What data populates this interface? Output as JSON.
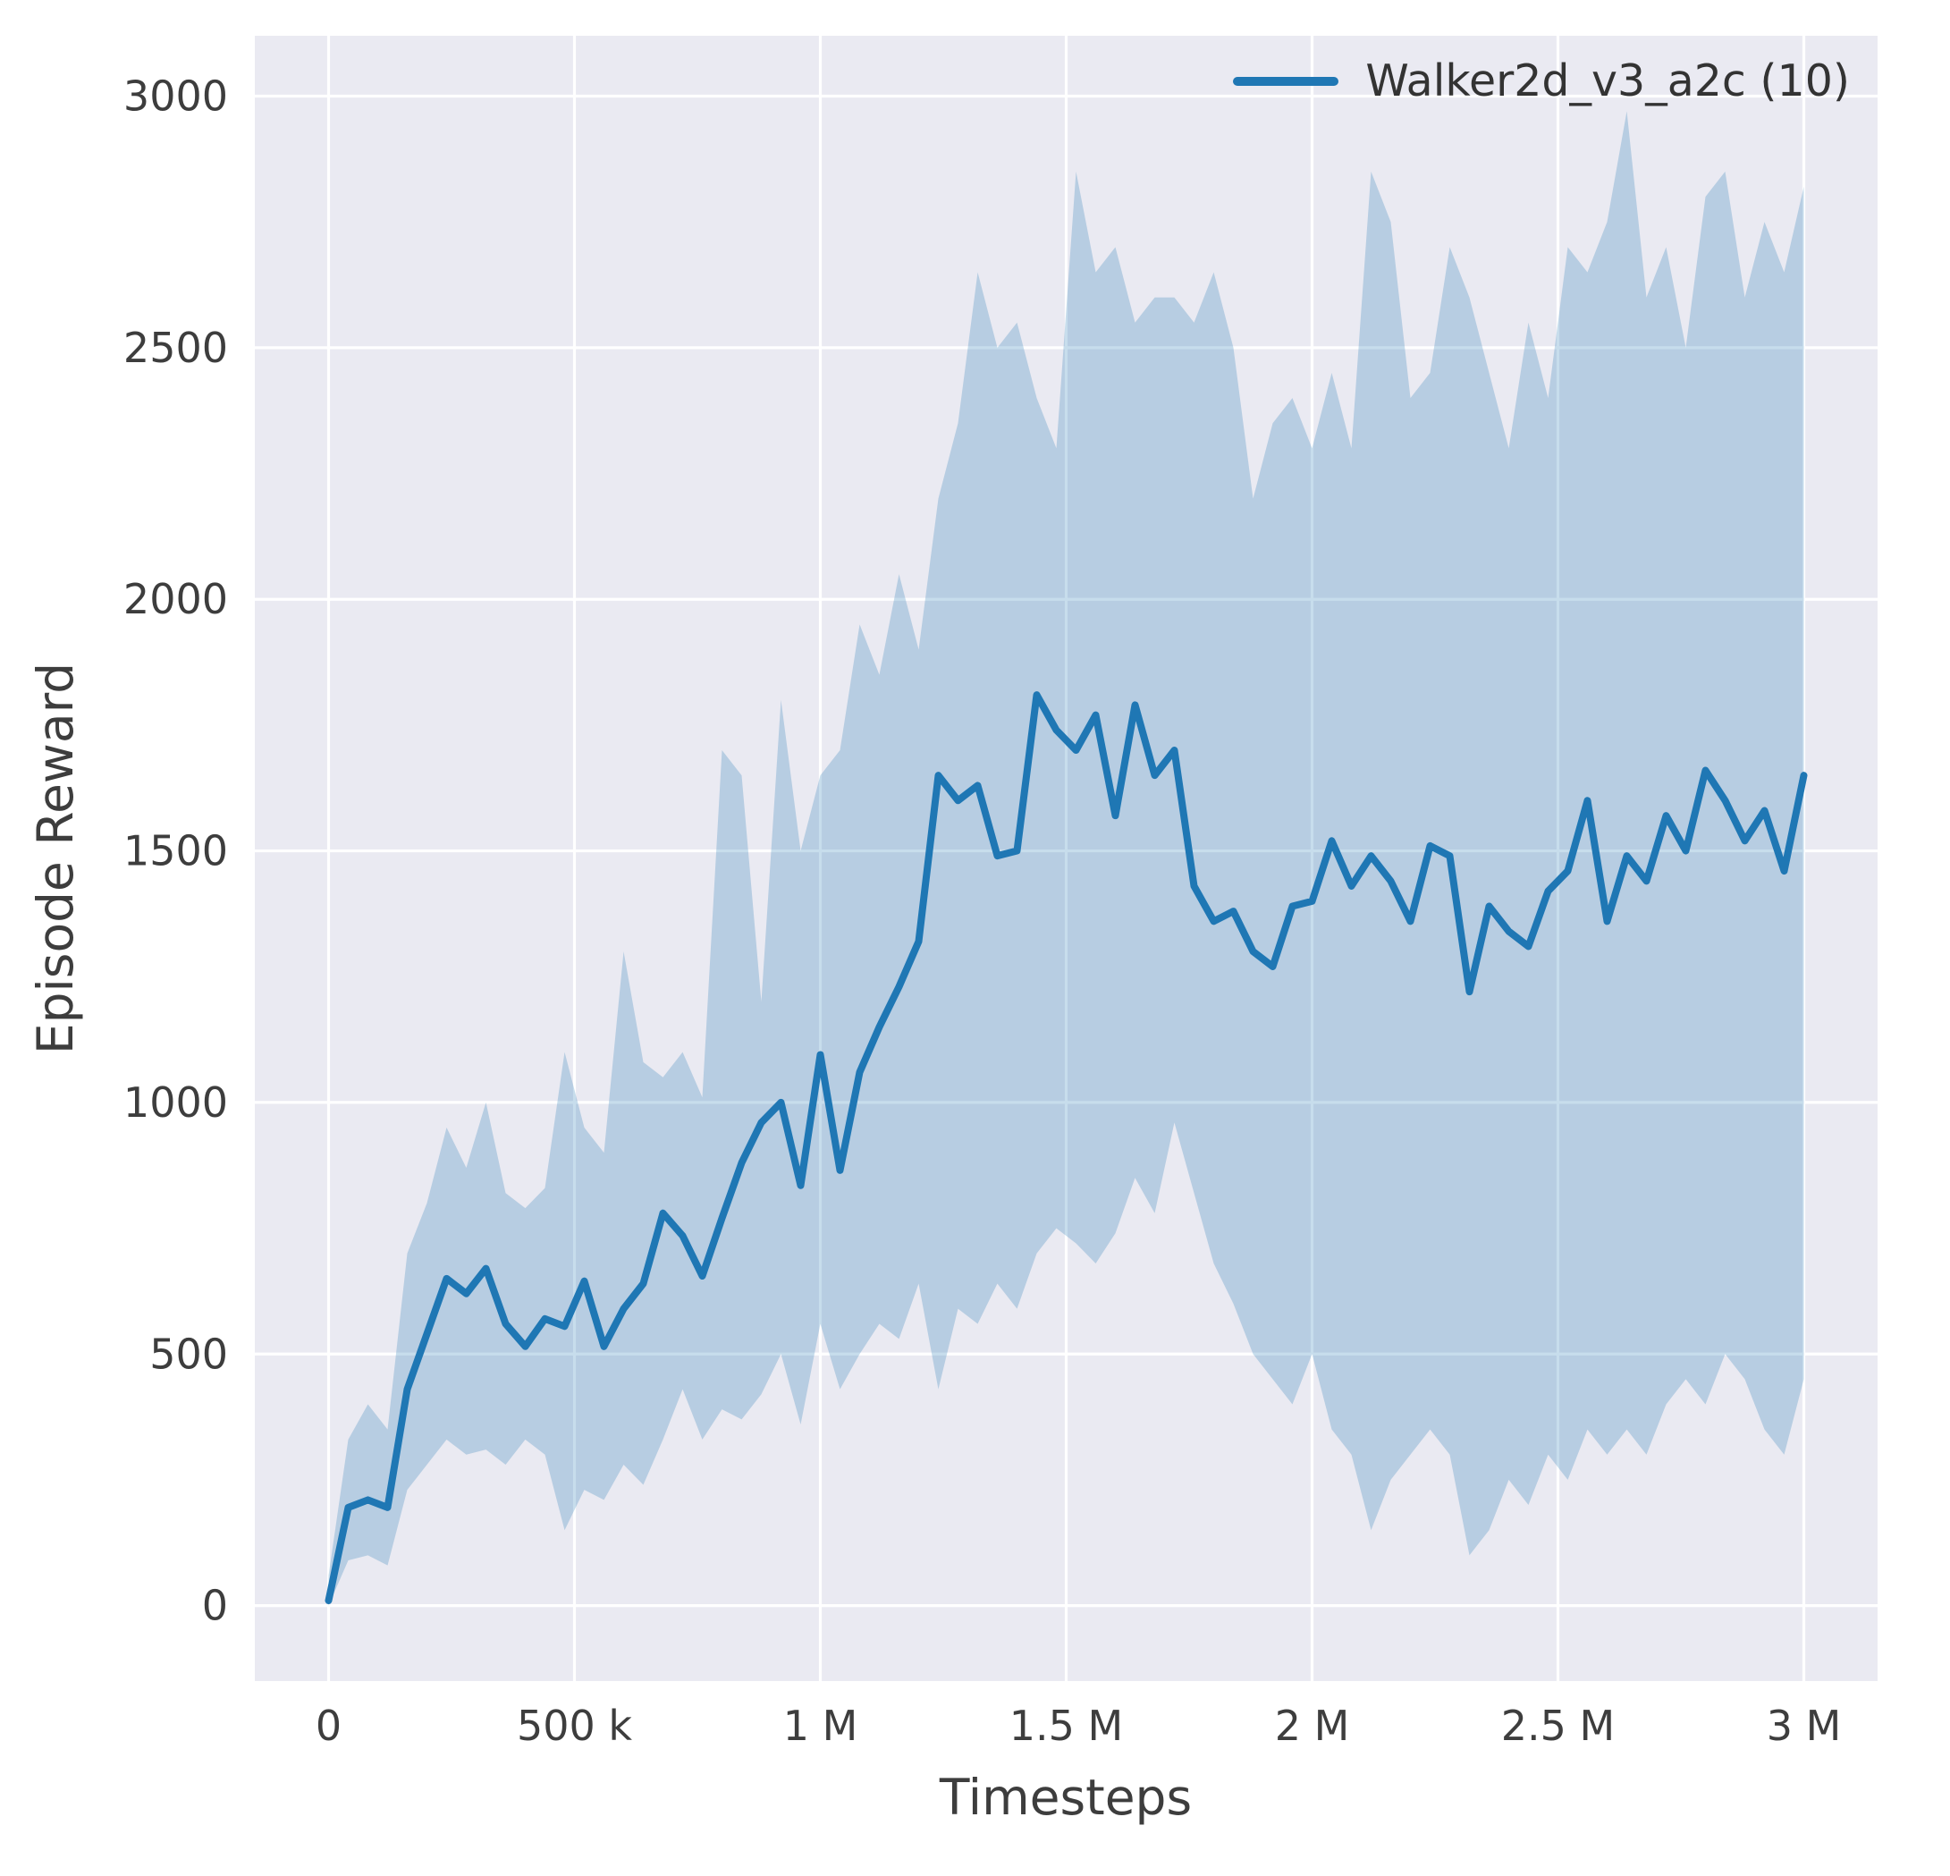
{
  "chart_data": {
    "type": "line",
    "title": "",
    "xlabel": "Timesteps",
    "ylabel": "Episode Reward",
    "grid": true,
    "legend_position": "upper right",
    "xlim": [
      -150000,
      3150000
    ],
    "ylim": [
      -150,
      3120
    ],
    "xticks": [
      {
        "value": 0,
        "label": "0"
      },
      {
        "value": 500000,
        "label": "500 k"
      },
      {
        "value": 1000000,
        "label": "1 M"
      },
      {
        "value": 1500000,
        "label": "1.5 M"
      },
      {
        "value": 2000000,
        "label": "2 M"
      },
      {
        "value": 2500000,
        "label": "2.5 M"
      },
      {
        "value": 3000000,
        "label": "3 M"
      }
    ],
    "yticks": [
      {
        "value": 0,
        "label": "0"
      },
      {
        "value": 500,
        "label": "500"
      },
      {
        "value": 1000,
        "label": "1000"
      },
      {
        "value": 1500,
        "label": "1500"
      },
      {
        "value": 2000,
        "label": "2000"
      },
      {
        "value": 2500,
        "label": "2500"
      },
      {
        "value": 3000,
        "label": "3000"
      }
    ],
    "colors": {
      "line": "#1f77b4",
      "band": "#1f77b4",
      "band_opacity": 0.25,
      "plot_bg": "#eaeaf2",
      "grid": "#ffffff",
      "tick_label": "#3d3d3d",
      "axis_label": "#3d3d3d"
    },
    "series": [
      {
        "name": "Walker2d_v3_a2c (10)",
        "color": "#1f77b4",
        "x": [
          0,
          40000,
          80000,
          120000,
          160000,
          200000,
          240000,
          280000,
          320000,
          360000,
          400000,
          440000,
          480000,
          520000,
          560000,
          600000,
          640000,
          680000,
          720000,
          760000,
          800000,
          840000,
          880000,
          920000,
          960000,
          1000000,
          1040000,
          1080000,
          1120000,
          1160000,
          1200000,
          1240000,
          1280000,
          1320000,
          1360000,
          1400000,
          1440000,
          1480000,
          1520000,
          1560000,
          1600000,
          1640000,
          1680000,
          1720000,
          1760000,
          1800000,
          1840000,
          1880000,
          1920000,
          1960000,
          2000000,
          2040000,
          2080000,
          2120000,
          2160000,
          2200000,
          2240000,
          2280000,
          2320000,
          2360000,
          2400000,
          2440000,
          2480000,
          2520000,
          2560000,
          2600000,
          2640000,
          2680000,
          2720000,
          2760000,
          2800000,
          2840000,
          2880000,
          2920000,
          2960000,
          3000000
        ],
        "mean": [
          10,
          195,
          210,
          195,
          430,
          540,
          650,
          620,
          670,
          560,
          515,
          570,
          555,
          645,
          515,
          590,
          640,
          780,
          735,
          655,
          770,
          880,
          960,
          1000,
          835,
          1095,
          865,
          1060,
          1150,
          1230,
          1320,
          1650,
          1600,
          1630,
          1490,
          1500,
          1810,
          1740,
          1700,
          1770,
          1570,
          1790,
          1650,
          1700,
          1430,
          1360,
          1380,
          1300,
          1270,
          1390,
          1400,
          1520,
          1430,
          1490,
          1440,
          1360,
          1510,
          1490,
          1220,
          1390,
          1340,
          1310,
          1420,
          1460,
          1600,
          1360,
          1490,
          1440,
          1570,
          1500,
          1660,
          1600,
          1520,
          1580,
          1460,
          1650
        ],
        "band_lower": [
          0,
          90,
          100,
          80,
          230,
          280,
          330,
          300,
          310,
          280,
          330,
          300,
          150,
          230,
          210,
          280,
          240,
          330,
          430,
          330,
          390,
          370,
          420,
          500,
          360,
          560,
          430,
          500,
          560,
          530,
          640,
          430,
          590,
          560,
          640,
          590,
          700,
          750,
          720,
          680,
          740,
          850,
          780,
          960,
          820,
          680,
          600,
          500,
          450,
          400,
          500,
          350,
          300,
          150,
          250,
          300,
          350,
          300,
          100,
          150,
          250,
          200,
          300,
          250,
          350,
          300,
          350,
          300,
          400,
          450,
          400,
          500,
          450,
          350,
          300,
          450
        ],
        "band_upper": [
          60,
          330,
          400,
          350,
          700,
          800,
          950,
          870,
          1000,
          820,
          790,
          830,
          1100,
          950,
          900,
          1300,
          1080,
          1050,
          1100,
          1010,
          1700,
          1650,
          1200,
          1800,
          1500,
          1650,
          1700,
          1950,
          1850,
          2050,
          1900,
          2200,
          2350,
          2650,
          2500,
          2550,
          2400,
          2300,
          2850,
          2650,
          2700,
          2550,
          2600,
          2600,
          2550,
          2650,
          2500,
          2200,
          2350,
          2400,
          2300,
          2450,
          2300,
          2850,
          2750,
          2400,
          2450,
          2700,
          2600,
          2450,
          2300,
          2550,
          2400,
          2700,
          2650,
          2750,
          2970,
          2600,
          2700,
          2500,
          2800,
          2850,
          2600,
          2750,
          2650,
          2820
        ]
      }
    ]
  }
}
